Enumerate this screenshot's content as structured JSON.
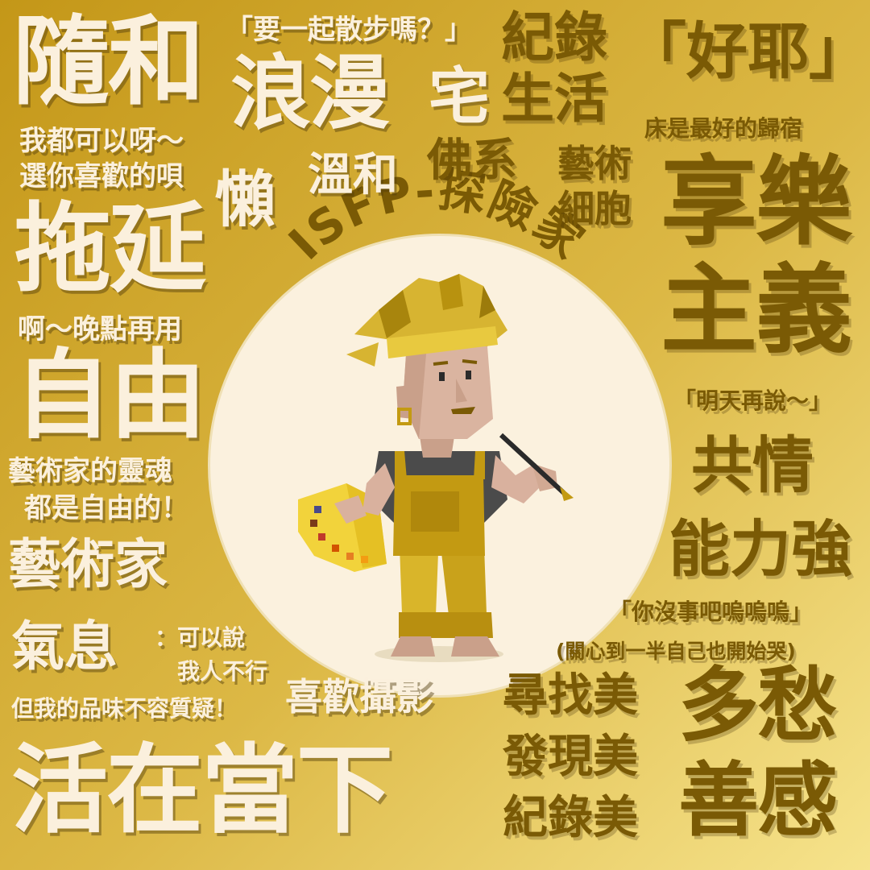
{
  "colors": {
    "bg_start": "#c59a1a",
    "bg_end": "#f4de80",
    "cream": "#fbf0dd",
    "brown": "#7a5a05",
    "circle": "#fbf1de"
  },
  "badge": {
    "title": "ISFP-探險家"
  },
  "words": {
    "w1": "隨和",
    "w2": "「要一起散步嗎？」",
    "w3": "紀錄",
    "w4": "生活",
    "w5": "「好耶」",
    "w6": "浪漫",
    "w7": "宅",
    "w8": "床是最好的歸宿",
    "w9": "我都可以呀～",
    "w10": "選你喜歡的唄",
    "w11": "懶",
    "w12": "溫和",
    "w13": "佛系",
    "w14": "藝術",
    "w15": "細胞",
    "w16": "享樂",
    "w17": "主義",
    "w18": "拖延",
    "w19": "啊～晚點再用",
    "w20": "自由",
    "w21": "「明天再說～」",
    "w22": "藝術家的靈魂",
    "w23": "都是自由的！",
    "w24": "共情",
    "w25": "能力強",
    "w26": "藝術家",
    "w27": "「你沒事吧嗚嗚嗚」",
    "w28": "(關心到一半自己也開始哭)",
    "w29": "氣息",
    "w30": "：可以說",
    "w31": "我人不行",
    "w32": "但我的品味不容質疑！",
    "w33": "喜歡攝影",
    "w34": "尋找美",
    "w35": "發現美",
    "w36": "紀錄美",
    "w37": "多愁",
    "w38": "善感",
    "w39": "活在當下"
  }
}
